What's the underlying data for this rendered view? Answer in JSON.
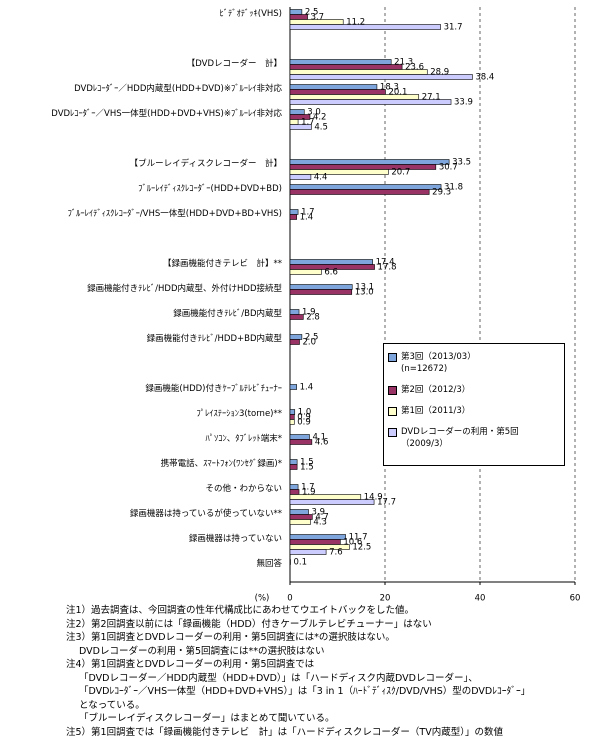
{
  "chart_data": {
    "type": "bar",
    "orientation": "horizontal",
    "x_label": "(%)",
    "categories": [
      "ﾋﾞﾃﾞｵﾃﾞｯｷ(VHS)",
      null,
      "【DVDレコーダー　計】",
      "DVDﾚｺｰﾀﾞｰ／HDD内蔵型(HDD+DVD)※ﾌﾞﾙｰﾚｲ非対応",
      "DVDﾚｺｰﾀﾞｰ／VHS一体型(HDD+DVD+VHS)※ﾌﾞﾙｰﾚｲ非対応",
      null,
      "【ブルーレイディスクレコーダー　計】",
      "ﾌﾞﾙｰﾚｲﾃﾞｨｽｸﾚｺｰﾀﾞｰ(HDD+DVD+BD)",
      "ﾌﾞﾙｰﾚｲﾃﾞｨｽｸﾚｺｰﾀﾞｰ/VHS一体型(HDD+DVD+BD+VHS)",
      null,
      "【録画機能付きテレビ　計】**",
      "録画機能付きﾃﾚﾋﾞ/HDD内蔵型、外付けHDD接続型",
      "録画機能付きﾃﾚﾋﾞ/BD内蔵型",
      "録画機能付きﾃﾚﾋﾞ/HDD+BD内蔵型",
      null,
      "録画機能(HDD)付きｹｰﾌﾞﾙﾃﾚﾋﾞﾁｭｰﾅｰ",
      "ﾌﾟﾚｲｽﾃｰｼｮﾝ3(torne)**",
      "ﾊﾟｿｺﾝ、ﾀﾌﾞﾚｯﾄ端末*",
      "携帯電話、ｽﾏｰﾄﾌｫﾝ(ﾜﾝｾｸﾞ録画)*",
      "その他・わからない",
      "録画機器は持っているが使っていない**",
      "録画機器は持っていない",
      "無回答"
    ],
    "series": [
      {
        "name": "第3回（2013/03）",
        "name_note": "(n=12672)",
        "color": "#7ea6dc",
        "values": [
          2.5,
          null,
          21.3,
          18.3,
          3.0,
          null,
          33.5,
          31.8,
          1.7,
          null,
          17.4,
          13.1,
          1.9,
          2.5,
          null,
          1.4,
          1.0,
          4.1,
          1.5,
          1.7,
          3.9,
          11.7,
          0.1
        ],
        "value_labels": [
          "2.5",
          null,
          "21.3",
          "18.3",
          "3.0",
          null,
          "33.5",
          "31.8",
          "1.7",
          null,
          "17.4",
          "13.1",
          "1.9",
          "2.5",
          null,
          "1.4",
          "1.0",
          "4.1",
          "1.5",
          "1.7",
          "3.9",
          "11.7",
          "0.1"
        ]
      },
      {
        "name": "第2回（2012/3）",
        "color": "#993366",
        "values": [
          3.7,
          null,
          23.6,
          20.1,
          4.2,
          null,
          30.7,
          29.3,
          1.4,
          null,
          17.8,
          13.0,
          2.8,
          2.0,
          null,
          null,
          0.9,
          4.6,
          1.5,
          1.9,
          4.7,
          10.6,
          null
        ],
        "value_labels": [
          "3.7",
          null,
          "23.6",
          "20.1",
          "4.2",
          null,
          "30.7",
          "29.3",
          "1.4",
          null,
          "17.8",
          "13.0",
          "2.8",
          "2.0",
          null,
          null,
          "0.9",
          "4.6",
          "1.5",
          "1.9",
          "4.7",
          "10.6",
          null
        ]
      },
      {
        "name": "第1回（2011/3）",
        "color": "#ffffcc",
        "values": [
          11.2,
          null,
          28.9,
          27.1,
          1.7,
          null,
          20.7,
          null,
          null,
          null,
          6.6,
          null,
          null,
          null,
          null,
          null,
          0.9,
          null,
          null,
          14.9,
          4.3,
          12.5,
          null
        ],
        "value_labels": [
          "11.2",
          null,
          "28.9",
          "27.1",
          "1.7",
          null,
          "20.7",
          null,
          null,
          null,
          "6.6",
          null,
          null,
          null,
          null,
          null,
          "0.9",
          null,
          null,
          "14.9",
          "4.3",
          "12.5",
          null
        ]
      },
      {
        "name": "DVDレコーダーの利用・第5回（2009/3）",
        "color": "#ccccff",
        "values": [
          31.7,
          null,
          38.4,
          33.9,
          4.5,
          null,
          4.4,
          null,
          null,
          null,
          null,
          null,
          null,
          null,
          null,
          null,
          null,
          null,
          null,
          17.7,
          null,
          7.6,
          null
        ],
        "value_labels": [
          "31.7",
          null,
          "38.4",
          "33.9",
          "4.5",
          null,
          "4.4",
          null,
          null,
          null,
          null,
          null,
          null,
          null,
          null,
          null,
          null,
          null,
          null,
          "17.7",
          null,
          "7.6",
          null
        ]
      }
    ],
    "xlim": [
      0,
      60
    ],
    "xticks": [
      0,
      20,
      40,
      60
    ],
    "grid": true,
    "legend": "right",
    "notes": [
      "注1）過去調査は、今回調査の性年代構成比にあわせてウエイトバックをした値。",
      "注2）第2回調査以前には「録画機能（HDD）付きケーブルテレビチューナー」はない",
      "注3）第1回調査とDVDレコーダーの利用・第5回調査には*の選択肢はない。",
      "DVDレコーダーの利用・第5回調査には**の選択肢はない",
      "注4）第1回調査とDVDレコーダーの利用・第5回調査では",
      "「DVDレコーダー／HDD内蔵型（HDD+DVD）」は「ハードディスク内蔵DVDレコーダー」、",
      "「DVDﾚｺｰﾀﾞｰ／VHS一体型（HDD+DVD+VHS）」は「3 in 1（ﾊｰﾄﾞﾃﾞｨｽｸ/DVD/VHS）型のDVDﾚｺｰﾀﾞｰ」",
      "となっている。",
      "「ブルーレイディスクレコーダー」はまとめて聞いている。",
      "注5）第1回調査では「録画機能付きテレビ　計」は「ハードディスクレコーダー（TV内蔵型）」の数値"
    ]
  }
}
